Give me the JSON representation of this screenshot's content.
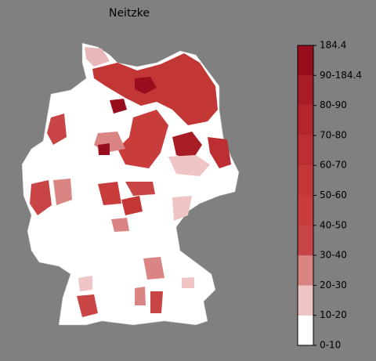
{
  "title": "Neitzke",
  "colorbar": {
    "labels": [
      "0-10",
      "10-20",
      "20-30",
      "30-40",
      "40-50",
      "50-60",
      "60-70",
      "70-80",
      "80-90",
      "90-184.4",
      "184.4"
    ],
    "colors": [
      "#ffffff",
      "#f0c4c4",
      "#da8484",
      "#c94444",
      "#c83c3c",
      "#c33636",
      "#bc2e32",
      "#b4262c",
      "#a81c26",
      "#980e1e"
    ]
  }
}
